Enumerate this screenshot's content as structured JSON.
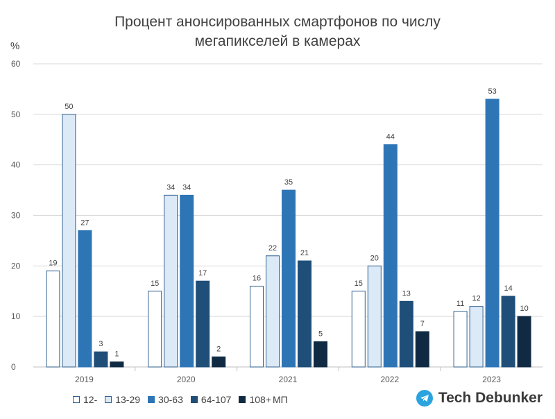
{
  "chart_data": {
    "type": "bar",
    "title": "Процент анонсированных смартфонов по числу мегапикселей в камерах",
    "title_lines": [
      "Процент анонсированных смартфонов по числу",
      "мегапикселей в камерах"
    ],
    "ylabel": "%",
    "ylim": [
      0,
      60
    ],
    "yticks": [
      "0",
      "10",
      "20",
      "30",
      "40",
      "50",
      "60"
    ],
    "grid": true,
    "categories": [
      "2019",
      "2020",
      "2021",
      "2022",
      "2023"
    ],
    "series": [
      {
        "name": "12-",
        "values": [
          19,
          15,
          16,
          15,
          11
        ],
        "value_labels": [
          "19",
          "15",
          "16",
          "15",
          "11"
        ],
        "color": "#ffffff",
        "stroke": "#2e5f8f"
      },
      {
        "name": "13-29",
        "values": [
          50,
          34,
          22,
          20,
          12
        ],
        "value_labels": [
          "50",
          "34",
          "22",
          "20",
          "12"
        ],
        "color": "#dce9f6",
        "stroke": "#2e5f8f"
      },
      {
        "name": "30-63",
        "values": [
          27,
          34,
          35,
          44,
          53
        ],
        "value_labels": [
          "27",
          "34",
          "35",
          "44",
          "53"
        ],
        "color": "#2e75b6",
        "stroke": "#2e75b6"
      },
      {
        "name": "64-107",
        "values": [
          3,
          17,
          21,
          13,
          14
        ],
        "value_labels": [
          "3",
          "17",
          "21",
          "13",
          "14"
        ],
        "color": "#1f4e79",
        "stroke": "#1f4e79"
      },
      {
        "name": "108+",
        "values": [
          1,
          2,
          5,
          7,
          10
        ],
        "value_labels": [
          "1",
          "2",
          "5",
          "7",
          "10"
        ],
        "color": "#102a43",
        "stroke": "#102a43"
      }
    ],
    "legend_position": "bottom-left",
    "legend_unit": "МП"
  },
  "brand": {
    "name": "Tech Debunker",
    "icon": "telegram-icon",
    "icon_color": "#2aa3df"
  }
}
